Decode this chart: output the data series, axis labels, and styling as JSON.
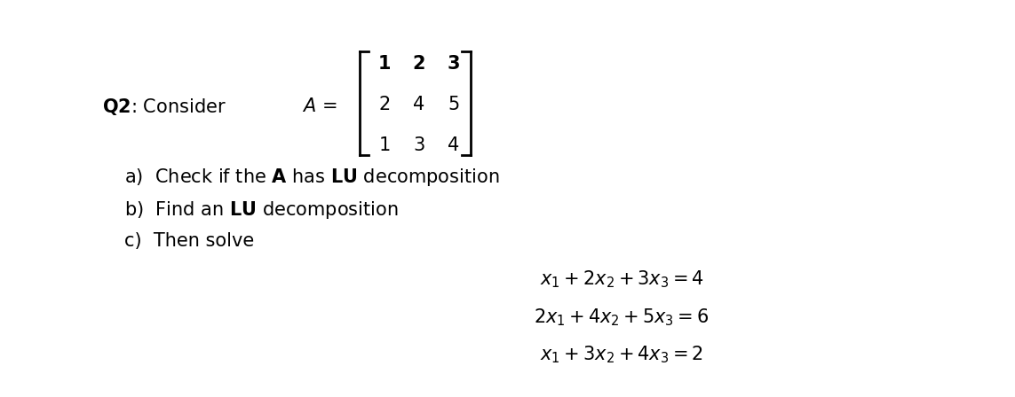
{
  "background_color": "#ffffff",
  "text_color": "#000000",
  "font_size": 15,
  "font_size_eq": 15,
  "matrix": [
    [
      1,
      2,
      3
    ],
    [
      2,
      4,
      5
    ],
    [
      1,
      3,
      4
    ]
  ],
  "eq1": "$x_1 + 2x_2 + 3x_3 = 4$",
  "eq2": "$2x_1 + 4x_2 + 5x_3 = 6$",
  "eq3": "$x_1 + 3x_2 + 4x_3 = 2$"
}
